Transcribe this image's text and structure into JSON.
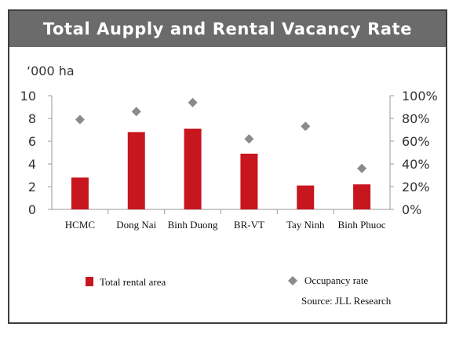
{
  "chart_data": {
    "type": "bar",
    "title": "Total Aupply and Rental Vacancy Rate",
    "ylabel": "‘000 ha",
    "categories": [
      "HCMC",
      "Dong Nai",
      "Binh Duong",
      "BR-VT",
      "Tay Ninh",
      "Binh Phuoc"
    ],
    "series": [
      {
        "name": "Total rental area",
        "type": "bar",
        "axis": "left",
        "color": "#c8161e",
        "values": [
          2.8,
          6.8,
          7.1,
          4.9,
          2.1,
          2.2
        ]
      },
      {
        "name": "Occupancy rate",
        "type": "scatter",
        "axis": "right",
        "color": "#8a8a8a",
        "values": [
          0.79,
          0.86,
          0.94,
          0.62,
          0.73,
          0.36
        ]
      }
    ],
    "y_ticks": [
      "0",
      "2",
      "4",
      "6",
      "8",
      "10"
    ],
    "y2_ticks": [
      "0%",
      "20%",
      "40%",
      "60%",
      "80%",
      "100%"
    ],
    "ylim": [
      0,
      10
    ],
    "y2lim": [
      0,
      1
    ],
    "grid": false,
    "legend_position": "bottom",
    "source": "Source: JLL Research"
  }
}
